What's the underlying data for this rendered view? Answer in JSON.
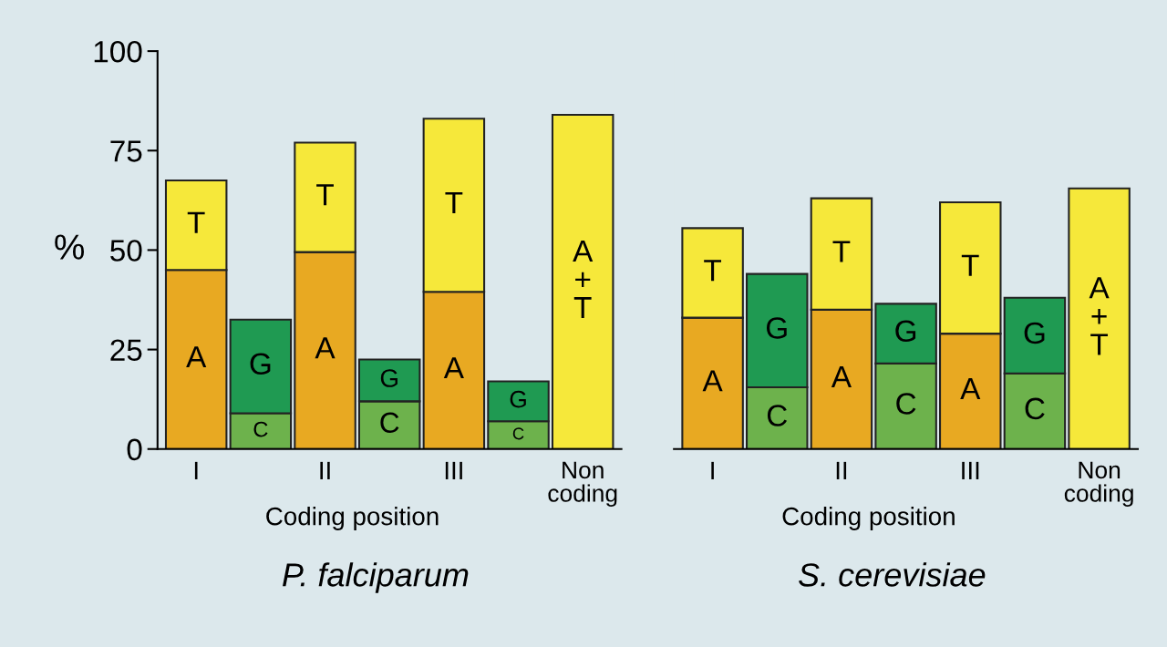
{
  "chart_data": [
    {
      "type": "bar",
      "stacked": true,
      "xlabel": "P. falciparum",
      "ylabel": "%",
      "categories": [
        "I",
        null,
        "II",
        null,
        "III",
        null,
        "Non\ncoding"
      ],
      "ylim": [
        0,
        100
      ],
      "yticks": [
        0,
        25,
        50,
        75,
        100
      ],
      "grid": false,
      "legend": false,
      "annotations": [
        "Coding position"
      ],
      "series": [
        {
          "name": "A",
          "color": "#e8a922",
          "values": [
            45,
            null,
            49.5,
            null,
            39.5,
            null,
            null
          ]
        },
        {
          "name": "T",
          "color": "#f6e83a",
          "values": [
            22.5,
            null,
            27.5,
            null,
            43.5,
            null,
            null
          ]
        },
        {
          "name": "C",
          "color": "#6db24c",
          "values": [
            null,
            9,
            null,
            12,
            null,
            7,
            null
          ]
        },
        {
          "name": "G",
          "color": "#1f9a52",
          "values": [
            null,
            23.5,
            null,
            10.5,
            null,
            10,
            null
          ]
        },
        {
          "name": "A+T",
          "color": "#f6e83a",
          "values": [
            null,
            null,
            null,
            null,
            null,
            null,
            84
          ]
        }
      ]
    },
    {
      "type": "bar",
      "stacked": true,
      "xlabel": "S. cerevisiae",
      "categories": [
        "I",
        null,
        "II",
        null,
        "III",
        null,
        "Non\ncoding"
      ],
      "ylim": [
        0,
        100
      ],
      "tick_labels": "x",
      "grid": false,
      "legend": false,
      "annotations": [
        "Coding position"
      ],
      "series": [
        {
          "name": "A",
          "color": "#e8a922",
          "values": [
            33,
            null,
            35,
            null,
            29,
            null,
            null
          ]
        },
        {
          "name": "T",
          "color": "#f6e83a",
          "values": [
            22.5,
            null,
            28,
            null,
            33,
            null,
            null
          ]
        },
        {
          "name": "C",
          "color": "#6db24c",
          "values": [
            null,
            15.5,
            null,
            21.5,
            null,
            19,
            null
          ]
        },
        {
          "name": "G",
          "color": "#1f9a52",
          "values": [
            null,
            28.5,
            null,
            15,
            null,
            19,
            null
          ]
        },
        {
          "name": "A+T",
          "color": "#f6e83a",
          "values": [
            null,
            null,
            null,
            null,
            null,
            null,
            65.5
          ]
        }
      ]
    }
  ]
}
